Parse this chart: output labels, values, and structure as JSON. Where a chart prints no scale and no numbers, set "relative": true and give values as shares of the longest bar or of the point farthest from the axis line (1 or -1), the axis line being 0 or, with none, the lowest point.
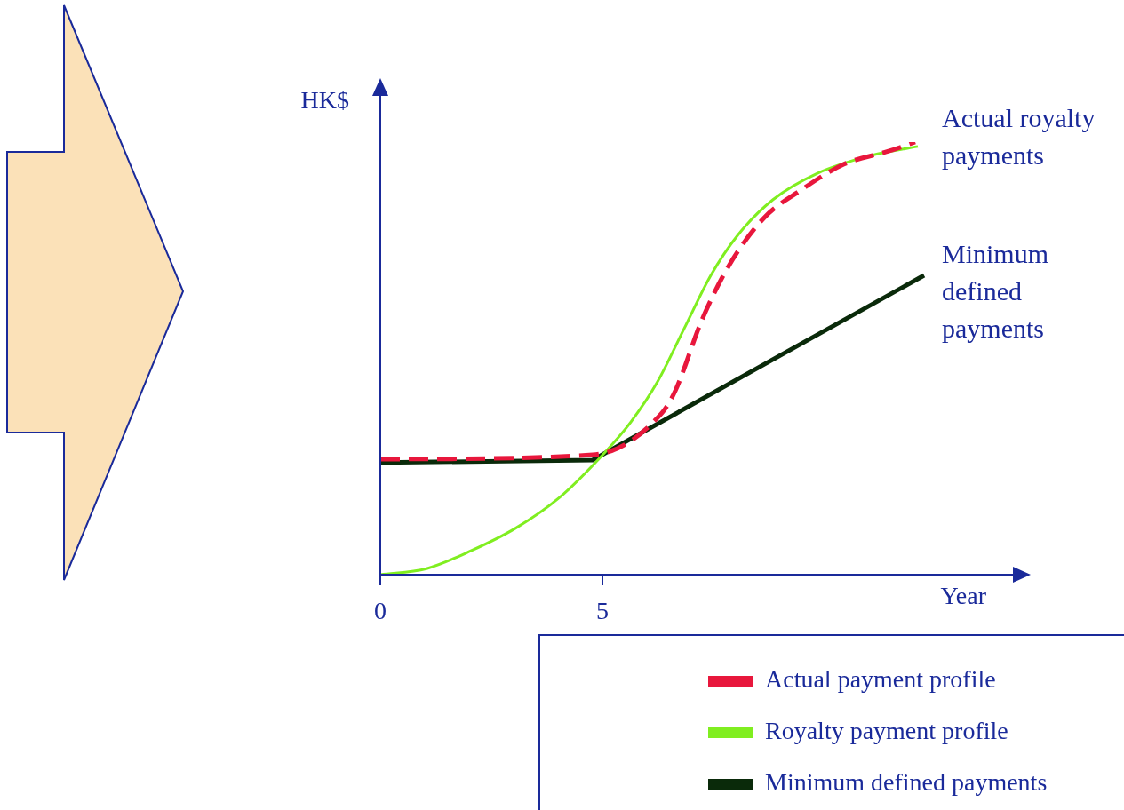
{
  "chart_data": {
    "type": "line",
    "relative": true,
    "xlabel": "Year",
    "ylabel": "HK$",
    "xlim": [
      0,
      14.24
    ],
    "xticks": [
      0,
      5
    ],
    "legend": "bottom right",
    "marker": "none",
    "series": [
      {
        "name": "Actual payment profile",
        "color": "#e8173c",
        "line_style": "dashed",
        "x": [
          0,
          4.78,
          6.34,
          6.64,
          7.24,
          7.84,
          8.64,
          9.44,
          10.44,
          11.44,
          12.04
        ],
        "values": [
          0.267,
          0.277,
          0.374,
          0.425,
          0.589,
          0.713,
          0.825,
          0.887,
          0.949,
          0.979,
          1
        ]
      },
      {
        "name": "Royalty payment profile",
        "color": "#80ee20",
        "line_style": "solid",
        "x": [
          0,
          1.04,
          2.04,
          3.04,
          4.04,
          5.04,
          5.64,
          6.24,
          6.84,
          7.44,
          8.04,
          8.84,
          9.84,
          11.04,
          12.1
        ],
        "values": [
          0,
          0.014,
          0.055,
          0.107,
          0.179,
          0.281,
          0.353,
          0.446,
          0.569,
          0.692,
          0.784,
          0.867,
          0.928,
          0.969,
          0.99
        ]
      },
      {
        "name": "Minimum defined payments",
        "color": "#0a2a0a",
        "line_style": "solid",
        "x": [
          0,
          4.78,
          12.24
        ],
        "values": [
          0.259,
          0.265,
          0.692
        ]
      }
    ],
    "annotations": [
      "Actual royalty payments",
      "Minimum defined payments"
    ]
  }
}
